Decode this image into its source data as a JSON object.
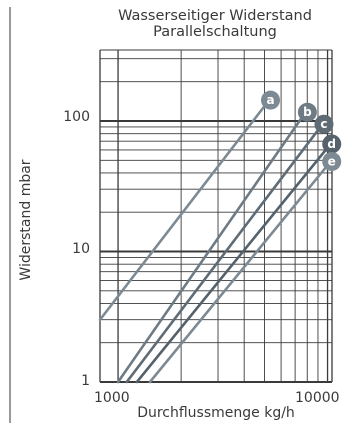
{
  "chart_data": {
    "type": "line",
    "title": "Wasserseitiger Widerstand",
    "subtitle": "Parallelschaltung",
    "xlabel": "Durchflussmenge kg/h",
    "ylabel": "Widerstand mbar",
    "x_scale": "log",
    "y_scale": "log",
    "xlim": [
      820,
      10500
    ],
    "ylim": [
      1,
      350
    ],
    "x_ticks": [
      1000,
      10000
    ],
    "x_tick_labels": [
      "1000",
      "10000"
    ],
    "y_ticks": [
      1,
      10,
      100
    ],
    "y_tick_labels": [
      "1",
      "10",
      "100"
    ],
    "grid": true,
    "series": [
      {
        "name": "a",
        "color": "#7d8a93",
        "x": [
          820,
          5000
        ],
        "y": [
          3.0,
          130
        ]
      },
      {
        "name": "b",
        "color": "#6e7b85",
        "x": [
          1000,
          7500
        ],
        "y": [
          1.0,
          105
        ]
      },
      {
        "name": "c",
        "color": "#5f6c76",
        "x": [
          1100,
          9000
        ],
        "y": [
          1.0,
          85
        ]
      },
      {
        "name": "d",
        "color": "#55626c",
        "x": [
          1230,
          9800
        ],
        "y": [
          1.0,
          60
        ]
      },
      {
        "name": "e",
        "color": "#7d8a93",
        "x": [
          1420,
          9800
        ],
        "y": [
          1.0,
          44
        ]
      }
    ]
  }
}
